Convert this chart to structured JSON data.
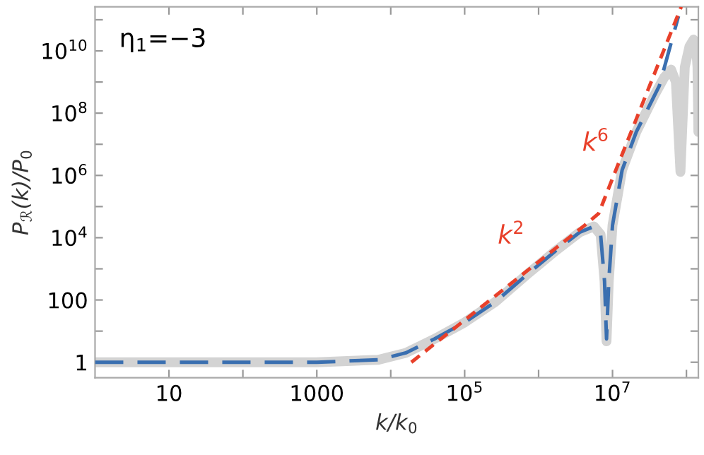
{
  "chart_data": {
    "type": "line",
    "xlabel": "k/k$_{0}$",
    "ylabel": "P$_{ℛ}$(k)/P$_{0}$",
    "log": "xy",
    "grid": false,
    "legend": false,
    "xlim": [
      1,
      145000000.0
    ],
    "ylim": [
      0.32,
      260000000000.0
    ],
    "xticks": [
      {
        "value": 10,
        "label": "10"
      },
      {
        "value": 100,
        "label": null
      },
      {
        "value": 1000,
        "label": "1000"
      },
      {
        "value": 10000,
        "label": null
      },
      {
        "value": 100000,
        "label": "10$^{5}$"
      },
      {
        "value": 1000000,
        "label": null
      },
      {
        "value": 10000000,
        "label": "10$^{7}$"
      },
      {
        "value": 100000000,
        "label": null
      }
    ],
    "yticks": [
      {
        "value": 1,
        "label": "1"
      },
      {
        "value": 10,
        "label": null
      },
      {
        "value": 100,
        "label": "100"
      },
      {
        "value": 1000,
        "label": null
      },
      {
        "value": 10000,
        "label": "10$^{4}$"
      },
      {
        "value": 100000,
        "label": null
      },
      {
        "value": 1000000,
        "label": "10$^{6}$"
      },
      {
        "value": 10000000,
        "label": null
      },
      {
        "value": 100000000,
        "label": "10$^{8}$"
      },
      {
        "value": 1000000000,
        "label": null
      },
      {
        "value": 10000000000,
        "label": "10$^{10}$"
      },
      {
        "value": 100000000000,
        "label": null
      }
    ],
    "series": [
      {
        "color": "#d3d3d3",
        "line_style": "solid",
        "x": [
          1,
          1000,
          6800,
          16000,
          39000,
          100000,
          260000,
          720000,
          1700000,
          3600000,
          5600000,
          6900000,
          7800000,
          8300000,
          8900000,
          10000000,
          13500000,
          21000000,
          37000000,
          50000000,
          62000000,
          72000000,
          83000000,
          95000000,
          110000000,
          125000000,
          135000000,
          141000000,
          145000000
        ],
        "values": [
          1,
          1,
          1.2,
          2,
          5.6,
          19,
          87,
          700,
          3800,
          15000,
          23000,
          12600,
          400,
          4.7,
          400,
          25000,
          1500000,
          25000000,
          380000000,
          1400000000,
          2500000000,
          1000000000,
          1300000,
          3000000000,
          14000000000,
          23000000000,
          15000000000,
          3000000000,
          25000000
        ]
      },
      {
        "color": "#3a6fb0",
        "line_style": "dashed",
        "x": [
          1,
          1000,
          6800,
          16000,
          39000,
          100000,
          260000,
          720000,
          1700000,
          3600000,
          5600000,
          6900000,
          7800000,
          8300000,
          8900000,
          10000000,
          13500000,
          21000000,
          43000000,
          78000000
        ],
        "values": [
          1,
          1,
          1.2,
          2,
          5.6,
          19,
          87,
          700,
          3800,
          15000,
          23000,
          12600,
          400,
          5.6,
          400,
          25000,
          1500000,
          25000000,
          760000000,
          130000000000
        ]
      },
      {
        "color": "#e8402a",
        "line_style": "dashed",
        "x": [
          19000,
          4200000,
          6500000,
          10000000,
          85000000
        ],
        "values": [
          1,
          25000,
          60000,
          800000,
          260000000000
        ]
      }
    ],
    "annotations": [
      "η$_{1}$=−3",
      "k$^{2}$",
      "k$^{6}$"
    ]
  }
}
